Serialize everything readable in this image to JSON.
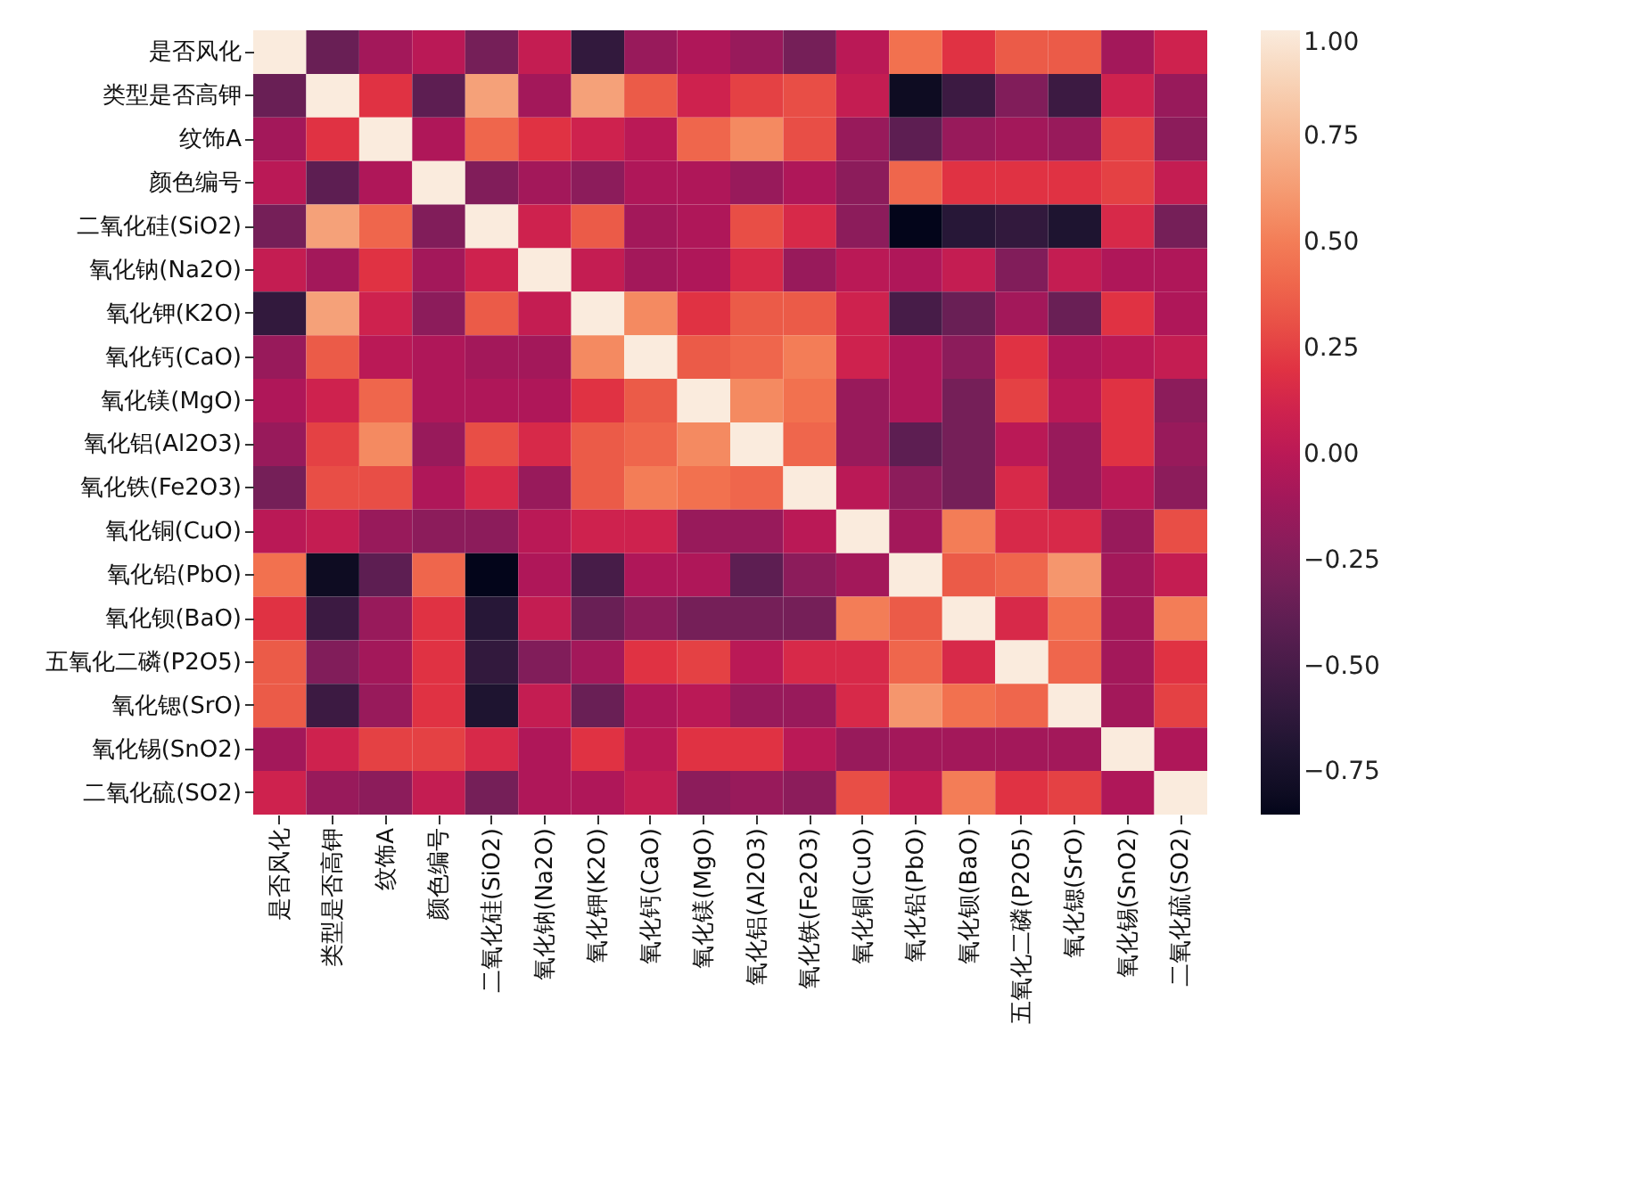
{
  "chart_data": {
    "type": "heatmap",
    "categories": [
      "是否风化",
      "类型是否高钾",
      "纹饰A",
      "颜色编号",
      "二氧化硅(SiO2)",
      "氧化钠(Na2O)",
      "氧化钾(K2O)",
      "氧化钙(CaO)",
      "氧化镁(MgO)",
      "氧化铝(Al2O3)",
      "氧化铁(Fe2O3)",
      "氧化铜(CuO)",
      "氧化铅(PbO)",
      "氧化钡(BaO)",
      "五氧化二磷(P2O5)",
      "氧化锶(SrO)",
      "氧化锡(SnO2)",
      "二氧化硫(SO2)"
    ],
    "y_categories": [
      "是否风化",
      "类型是否高钾",
      "纹饰A",
      "颜色编号",
      "二氧化硅(SiO2)",
      "氧化钠(Na2O)",
      "氧化钾(K2O)",
      "氧化钙(CaO)",
      "氧化镁(MgO)",
      "氧化铝(Al2O3)",
      "氧化铁(Fe2O3)",
      "氧化铜(CuO)",
      "氧化铅(PbO)",
      "氧化钡(BaO)",
      "五氧化二磷(P2O5)",
      "氧化锶(SrO)",
      "氧化锡(SnO2)",
      "二氧化硫(SO2)"
    ],
    "cells": [
      [
        1,
        -0.35,
        -0.1,
        0.0,
        -0.3,
        0.05,
        -0.6,
        -0.15,
        -0.05,
        -0.15,
        -0.3,
        0.0,
        0.45,
        0.2,
        0.35,
        0.35,
        -0.1,
        0.1
      ],
      [
        -0.35,
        1,
        0.2,
        -0.4,
        0.65,
        -0.1,
        0.65,
        0.35,
        0.1,
        0.25,
        0.3,
        0.05,
        -0.8,
        -0.55,
        -0.25,
        -0.55,
        0.1,
        -0.15
      ],
      [
        -0.1,
        0.2,
        1,
        -0.05,
        0.4,
        0.2,
        0.1,
        0.0,
        0.4,
        0.55,
        0.3,
        -0.15,
        -0.4,
        -0.15,
        -0.1,
        -0.15,
        0.25,
        -0.2
      ],
      [
        0.0,
        -0.4,
        -0.05,
        1,
        -0.25,
        -0.1,
        -0.2,
        -0.05,
        -0.05,
        -0.15,
        -0.05,
        -0.2,
        0.4,
        0.2,
        0.2,
        0.2,
        0.25,
        0.05
      ],
      [
        -0.3,
        0.65,
        0.4,
        -0.25,
        1,
        0.1,
        0.35,
        -0.1,
        -0.05,
        0.3,
        0.15,
        -0.2,
        -0.85,
        -0.65,
        -0.6,
        -0.7,
        0.15,
        -0.3
      ],
      [
        0.05,
        -0.1,
        0.2,
        -0.1,
        0.1,
        1,
        0.05,
        -0.1,
        -0.05,
        0.15,
        -0.15,
        0.0,
        -0.05,
        0.05,
        -0.25,
        0.05,
        -0.05,
        -0.05
      ],
      [
        -0.6,
        0.65,
        0.1,
        -0.2,
        0.35,
        0.05,
        1,
        0.55,
        0.2,
        0.35,
        0.35,
        0.1,
        -0.5,
        -0.35,
        -0.1,
        -0.35,
        0.2,
        -0.05
      ],
      [
        -0.15,
        0.35,
        0.0,
        -0.05,
        -0.1,
        -0.1,
        0.55,
        1,
        0.35,
        0.4,
        0.5,
        0.1,
        -0.05,
        -0.2,
        0.2,
        -0.05,
        0.0,
        0.05
      ],
      [
        -0.05,
        0.1,
        0.4,
        -0.05,
        -0.05,
        -0.05,
        0.2,
        0.35,
        1,
        0.55,
        0.45,
        -0.15,
        -0.05,
        -0.3,
        0.25,
        0.0,
        0.2,
        -0.2
      ],
      [
        -0.15,
        0.25,
        0.55,
        -0.15,
        0.3,
        0.15,
        0.35,
        0.4,
        0.55,
        1,
        0.4,
        -0.15,
        -0.4,
        -0.3,
        0.0,
        -0.15,
        0.2,
        -0.15
      ],
      [
        -0.3,
        0.3,
        0.3,
        -0.05,
        0.15,
        -0.15,
        0.35,
        0.5,
        0.45,
        0.4,
        1,
        0.0,
        -0.2,
        -0.3,
        0.15,
        -0.15,
        0.0,
        -0.2
      ],
      [
        0.0,
        0.05,
        -0.15,
        -0.2,
        -0.2,
        0.0,
        0.1,
        0.1,
        -0.15,
        -0.15,
        0.0,
        1,
        -0.1,
        0.5,
        0.15,
        0.15,
        -0.15,
        0.3
      ],
      [
        0.45,
        -0.8,
        -0.4,
        0.4,
        -0.85,
        -0.05,
        -0.5,
        -0.05,
        -0.05,
        -0.4,
        -0.2,
        -0.1,
        1,
        0.35,
        0.4,
        0.6,
        -0.1,
        0.05
      ],
      [
        0.2,
        -0.55,
        -0.15,
        0.2,
        -0.65,
        0.05,
        -0.35,
        -0.2,
        -0.3,
        -0.3,
        -0.3,
        0.5,
        0.35,
        1,
        0.15,
        0.45,
        -0.1,
        0.5
      ],
      [
        0.35,
        -0.25,
        -0.1,
        0.2,
        -0.6,
        -0.25,
        -0.1,
        0.2,
        0.25,
        0.0,
        0.15,
        0.15,
        0.4,
        0.15,
        1,
        0.4,
        -0.1,
        0.2
      ],
      [
        0.35,
        -0.55,
        -0.15,
        0.2,
        -0.7,
        0.05,
        -0.35,
        -0.05,
        0.0,
        -0.15,
        -0.15,
        0.15,
        0.6,
        0.45,
        0.4,
        1,
        -0.1,
        0.25
      ],
      [
        -0.1,
        0.1,
        0.25,
        0.25,
        0.15,
        -0.05,
        0.2,
        0.0,
        0.2,
        0.2,
        0.0,
        -0.15,
        -0.1,
        -0.1,
        -0.1,
        -0.1,
        1,
        -0.05
      ],
      [
        0.1,
        -0.15,
        -0.2,
        0.05,
        -0.3,
        -0.05,
        -0.05,
        0.05,
        -0.2,
        -0.15,
        -0.2,
        0.3,
        0.05,
        0.5,
        0.2,
        0.25,
        -0.05,
        1
      ]
    ],
    "clim": [
      -0.85,
      1
    ],
    "cticks": [
      {
        "value": -0.75,
        "label": "−0.75"
      },
      {
        "value": -0.5,
        "label": "−0.50"
      },
      {
        "value": -0.25,
        "label": "−0.25"
      },
      {
        "value": 0,
        "label": "0.00"
      },
      {
        "value": 0.25,
        "label": "0.25"
      },
      {
        "value": 0.5,
        "label": "0.50"
      },
      {
        "value": 0.75,
        "label": "0.75"
      },
      {
        "value": 1,
        "label": "1.00"
      }
    ]
  }
}
